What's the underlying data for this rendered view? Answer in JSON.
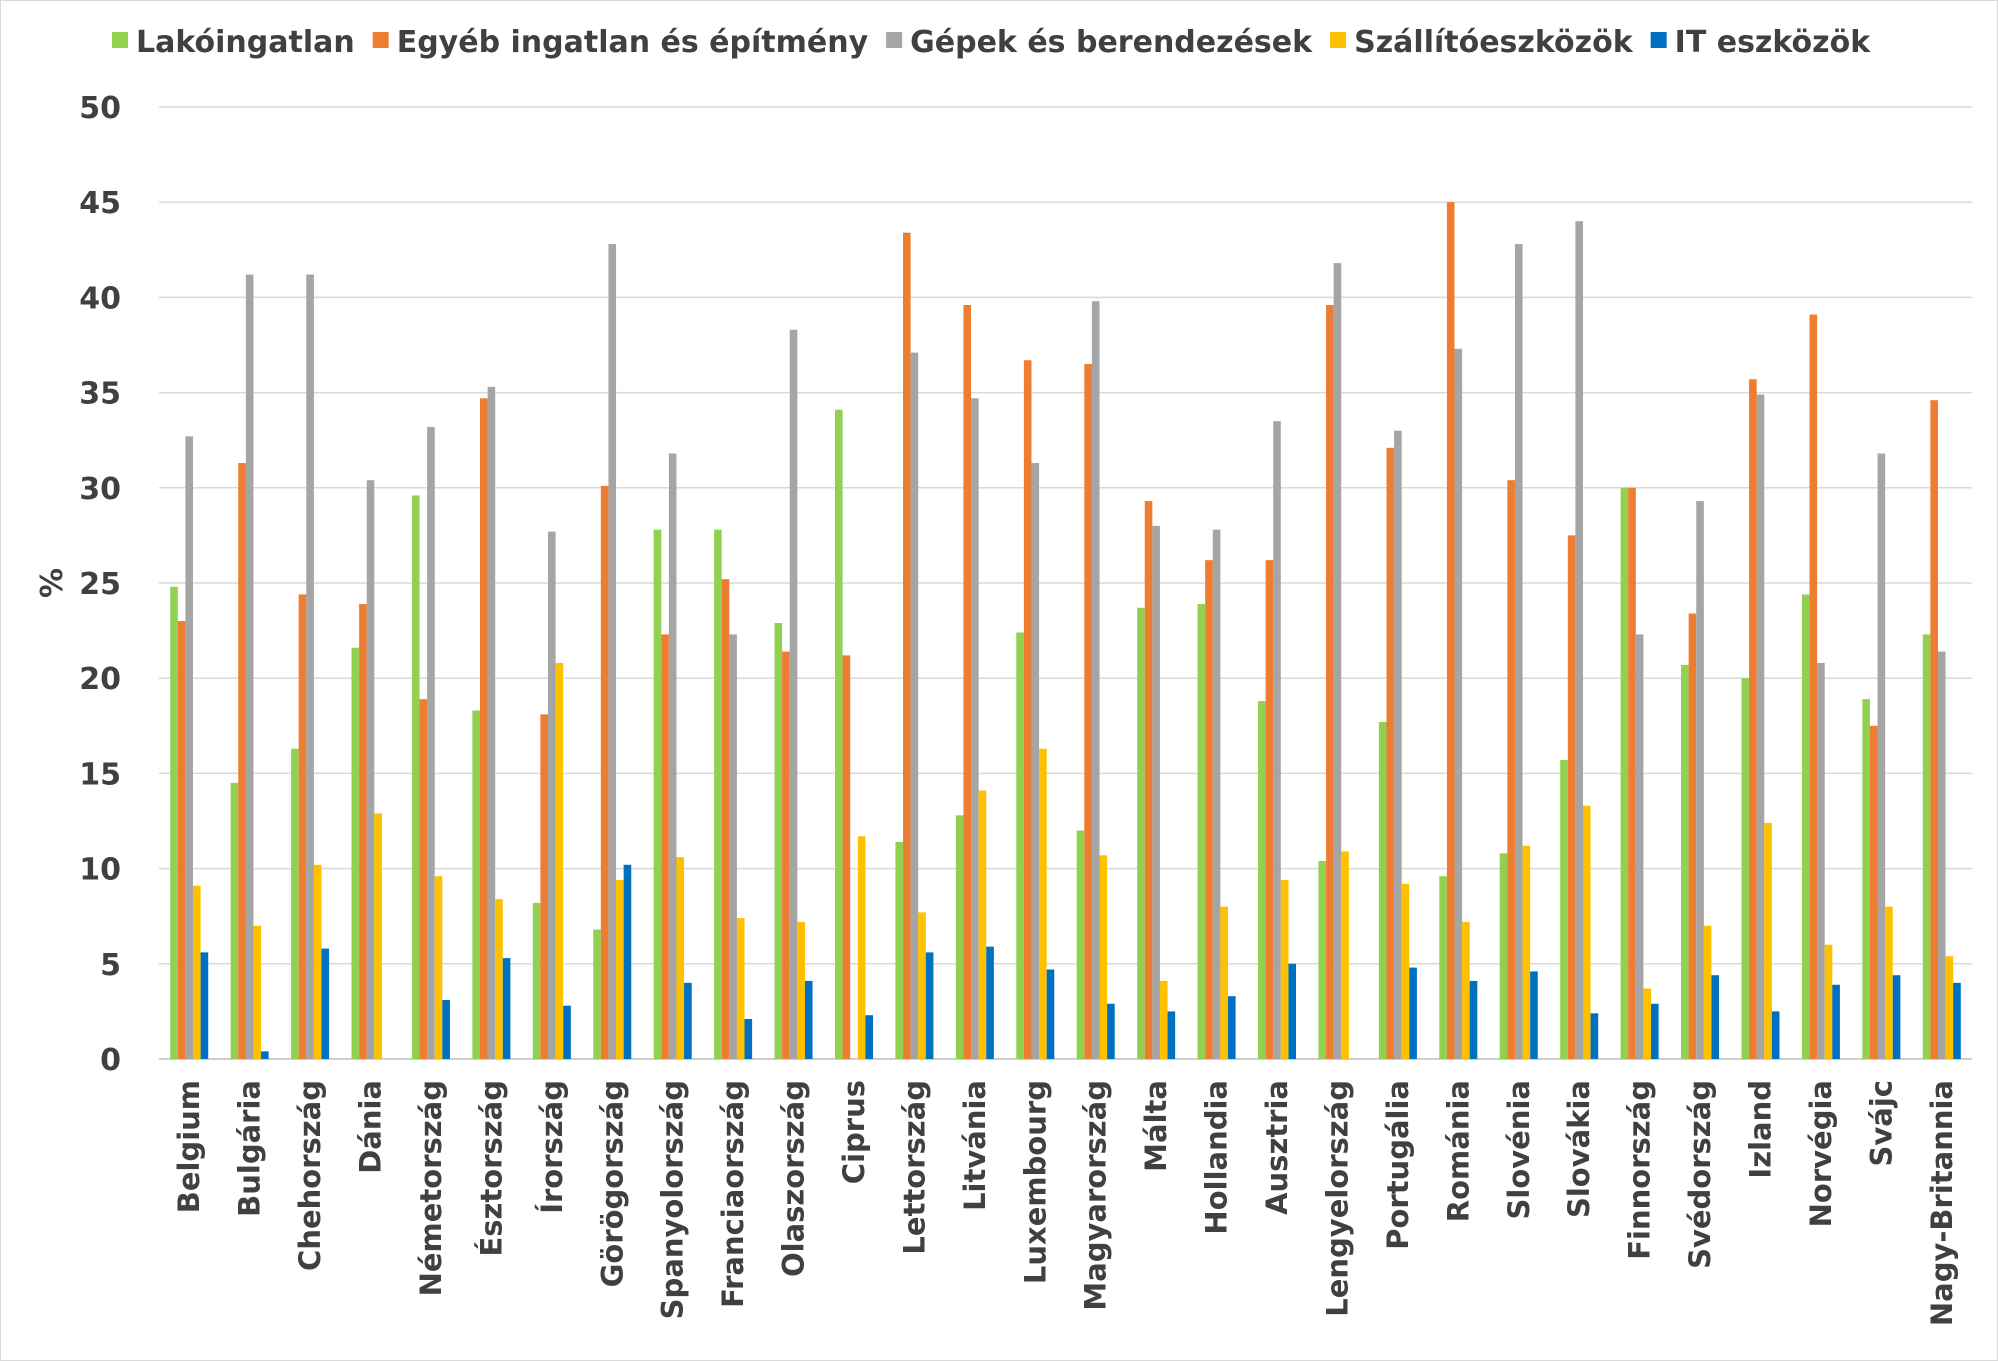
{
  "chart_data": {
    "type": "bar",
    "title": "",
    "xlabel": "",
    "ylabel": "%",
    "ylim": [
      0,
      50
    ],
    "yticks": [
      0,
      5,
      10,
      15,
      20,
      25,
      30,
      35,
      40,
      45,
      50
    ],
    "grid": true,
    "legend_position": "top",
    "categories": [
      "Belgium",
      "Bulgária",
      "Chehország",
      "Dánia",
      "Németország",
      "Észtország",
      "Írország",
      "Görögország",
      "Spanyolország",
      "Franciaország",
      "Olaszország",
      "Ciprus",
      "Lettország",
      "Litvánia",
      "Luxembourg",
      "Magyarország",
      "Málta",
      "Hollandia",
      "Ausztria",
      "Lengyelország",
      "Portugália",
      "Románia",
      "Slovénia",
      "Slovákia",
      "Finnország",
      "Svédország",
      "Izland",
      "Norvégia",
      "Svájc",
      "Nagy-Britannia"
    ],
    "series": [
      {
        "name": "Lakóingatlan",
        "color": "#92d050",
        "values": [
          24.8,
          14.5,
          16.3,
          21.6,
          29.6,
          18.3,
          8.2,
          6.8,
          27.8,
          27.8,
          22.9,
          34.1,
          11.4,
          12.8,
          22.4,
          12.0,
          23.7,
          23.9,
          18.8,
          10.4,
          17.7,
          9.6,
          10.8,
          15.7,
          30.0,
          20.7,
          20.0,
          24.4,
          18.9,
          22.3
        ]
      },
      {
        "name": "Egyéb ingatlan és építmény",
        "color": "#ed7d31",
        "values": [
          23.0,
          31.3,
          24.4,
          23.9,
          18.9,
          34.7,
          18.1,
          30.1,
          22.3,
          25.2,
          21.4,
          21.2,
          43.4,
          39.6,
          36.7,
          36.5,
          29.3,
          26.2,
          26.2,
          39.6,
          32.1,
          45.0,
          30.4,
          27.5,
          30.0,
          23.4,
          35.7,
          39.1,
          17.5,
          34.6
        ]
      },
      {
        "name": "Gépek és berendezések",
        "color": "#a5a5a5",
        "values": [
          32.7,
          41.2,
          41.2,
          30.4,
          33.2,
          35.3,
          27.7,
          42.8,
          31.8,
          22.3,
          38.3,
          null,
          37.1,
          34.7,
          31.3,
          39.8,
          28.0,
          27.8,
          33.5,
          41.8,
          33.0,
          37.3,
          42.8,
          44.0,
          22.3,
          29.3,
          34.9,
          20.8,
          31.8,
          21.4
        ]
      },
      {
        "name": "Szállítóeszközök",
        "color": "#ffc000",
        "values": [
          9.1,
          7.0,
          10.2,
          12.9,
          9.6,
          8.4,
          20.8,
          9.4,
          10.6,
          7.4,
          7.2,
          11.7,
          7.7,
          14.1,
          16.3,
          10.7,
          4.1,
          8.0,
          9.4,
          10.9,
          9.2,
          7.2,
          11.2,
          13.3,
          3.7,
          7.0,
          12.4,
          6.0,
          8.0,
          5.4
        ]
      },
      {
        "name": "IT eszközök",
        "color": "#0070c0",
        "values": [
          5.6,
          0.4,
          5.8,
          null,
          3.1,
          5.3,
          2.8,
          10.2,
          4.0,
          2.1,
          4.1,
          2.3,
          5.6,
          5.9,
          4.7,
          2.9,
          2.5,
          3.3,
          5.0,
          null,
          4.8,
          4.1,
          4.6,
          2.4,
          2.9,
          4.4,
          2.5,
          3.9,
          4.4,
          4.0
        ]
      }
    ]
  }
}
